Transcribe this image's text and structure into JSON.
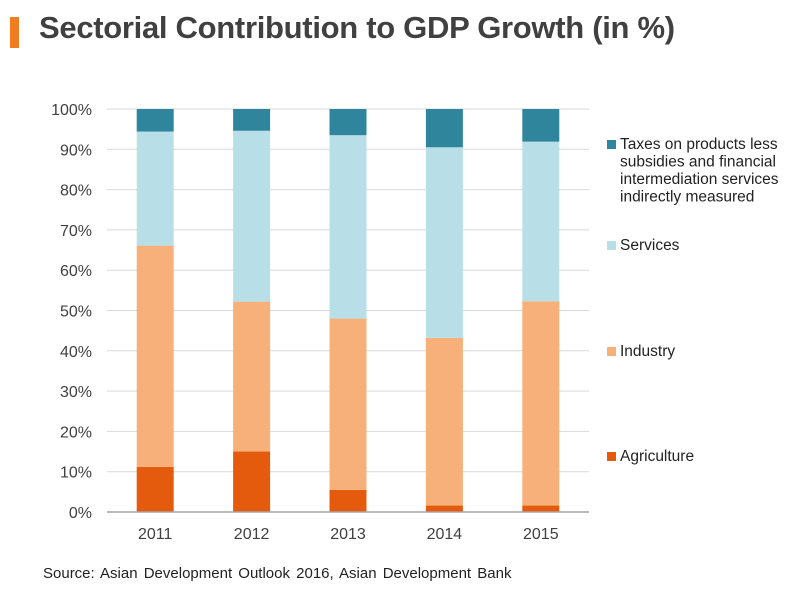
{
  "header": {
    "title": "Sectorial Contribution to GDP Growth (in %)",
    "accent_color": "#f07d22"
  },
  "chart_data": {
    "type": "bar",
    "stacked": true,
    "title": "Sectorial Contribution to GDP Growth (in %)",
    "xlabel": "",
    "ylabel": "",
    "ylim": [
      0,
      100
    ],
    "y_ticks": [
      "0%",
      "10%",
      "20%",
      "30%",
      "40%",
      "50%",
      "60%",
      "70%",
      "80%",
      "90%",
      "100%"
    ],
    "y_tick_values": [
      0,
      10,
      20,
      30,
      40,
      50,
      60,
      70,
      80,
      90,
      100
    ],
    "grid": true,
    "legend_position": "right",
    "categories": [
      "2011",
      "2012",
      "2013",
      "2014",
      "2015"
    ],
    "series": [
      {
        "name": "Agriculture",
        "color": "#e55b0d",
        "values": [
          11.2,
          15.0,
          5.5,
          1.6,
          1.6
        ]
      },
      {
        "name": "Industry",
        "color": "#f8b07a",
        "values": [
          54.9,
          37.2,
          42.5,
          41.6,
          50.7
        ]
      },
      {
        "name": "Services",
        "color": "#b8dfe8",
        "values": [
          28.3,
          42.4,
          45.5,
          47.3,
          39.6
        ]
      },
      {
        "name": "Taxes on products less subsidies and financial intermediation services indirectly measured",
        "color": "#2f869c",
        "values": [
          5.6,
          5.4,
          6.5,
          9.5,
          8.1
        ]
      }
    ],
    "legend": [
      {
        "lines": [
          "Taxes on products less",
          "subsidies and financial",
          "intermediation services",
          "indirectly measured"
        ],
        "color": "#2f869c"
      },
      {
        "lines": [
          "Services"
        ],
        "color": "#b8dfe8"
      },
      {
        "lines": [
          "Industry"
        ],
        "color": "#f8b07a"
      },
      {
        "lines": [
          "Agriculture"
        ],
        "color": "#e55b0d"
      }
    ]
  },
  "footer": {
    "source": "Source: Asian Development Outlook 2016, Asian Development Bank"
  }
}
